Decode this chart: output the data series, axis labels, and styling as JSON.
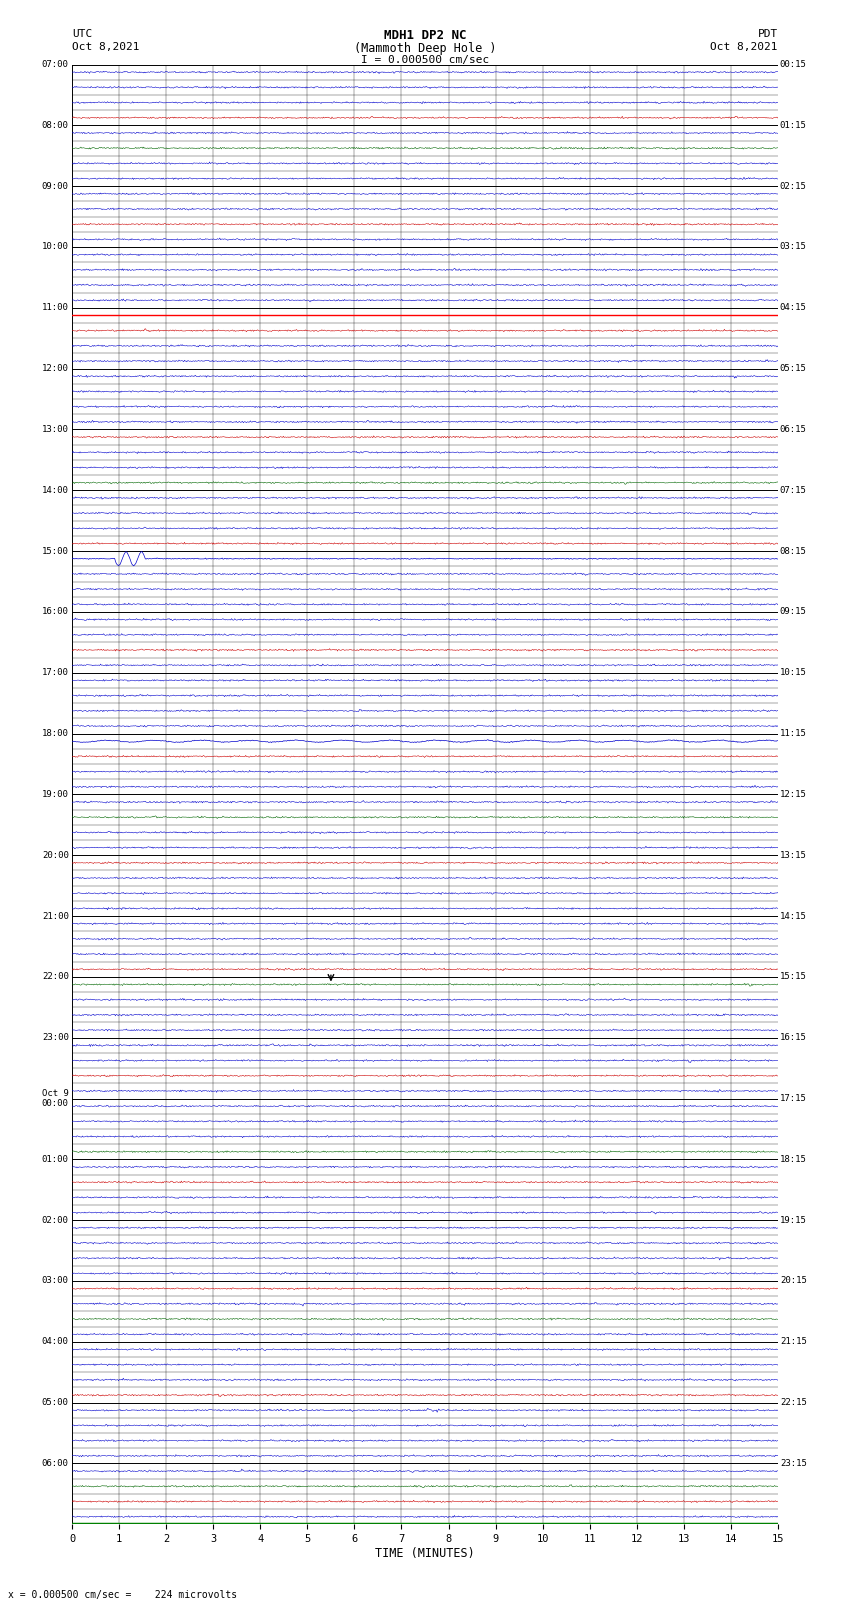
{
  "title_line1": "MDH1 DP2 NC",
  "title_line2": "(Mammoth Deep Hole )",
  "title_line3": "I = 0.000500 cm/sec",
  "left_label_top": "UTC",
  "left_label_date": "Oct 8,2021",
  "right_label_top": "PDT",
  "right_label_date": "Oct 8,2021",
  "xlabel": "TIME (MINUTES)",
  "bottom_note": "= 0.000500 cm/sec =    224 microvolts",
  "utc_labels": [
    "07:00",
    "08:00",
    "09:00",
    "10:00",
    "11:00",
    "12:00",
    "13:00",
    "14:00",
    "15:00",
    "16:00",
    "17:00",
    "18:00",
    "19:00",
    "20:00",
    "21:00",
    "22:00",
    "23:00",
    "Oct 9\n00:00",
    "01:00",
    "02:00",
    "03:00",
    "04:00",
    "05:00",
    "06:00"
  ],
  "pdt_labels": [
    "00:15",
    "01:15",
    "02:15",
    "03:15",
    "04:15",
    "05:15",
    "06:15",
    "07:15",
    "08:15",
    "09:15",
    "10:15",
    "11:15",
    "12:15",
    "13:15",
    "14:15",
    "15:15",
    "16:15",
    "17:15",
    "18:15",
    "19:15",
    "20:15",
    "21:15",
    "22:15",
    "23:15"
  ],
  "n_rows": 96,
  "n_cols": 15,
  "background_color": "#ffffff",
  "red_line_row": 16,
  "blue_persistent_row": 44,
  "earthquake_row": 32,
  "earthquake_col": 0.9,
  "annotation_row": 60,
  "annotation_col": 5.5
}
